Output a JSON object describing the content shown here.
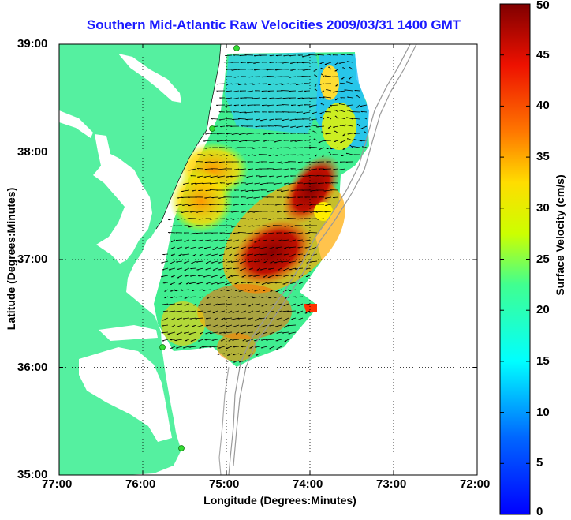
{
  "title": "Southern Mid-Atlantic Raw Velocities 2009/03/31 1400 GMT",
  "xlabel": "Longitude (Degrees:Minutes)",
  "ylabel": "Latitude (Degrees:Minutes)",
  "colorbar_label": "Surface Velocity (cm/s)",
  "x_ticks": [
    "77:00",
    "76:00",
    "75:00",
    "74:00",
    "73:00",
    "72:00"
  ],
  "y_ticks": [
    "39:00",
    "38:00",
    "37:00",
    "36:00",
    "35:00"
  ],
  "colorbar_ticks": [
    "50",
    "45",
    "40",
    "35",
    "30",
    "25",
    "20",
    "15",
    "10",
    "5",
    "0"
  ],
  "map_data": {
    "lon_range": [
      -77,
      -72
    ],
    "lat_range": [
      35,
      39
    ],
    "colorbar_range": [
      0,
      50
    ],
    "land_color": "#55f0a0",
    "colormap": "jet",
    "stations_color": "#33dd33",
    "grid": true
  }
}
